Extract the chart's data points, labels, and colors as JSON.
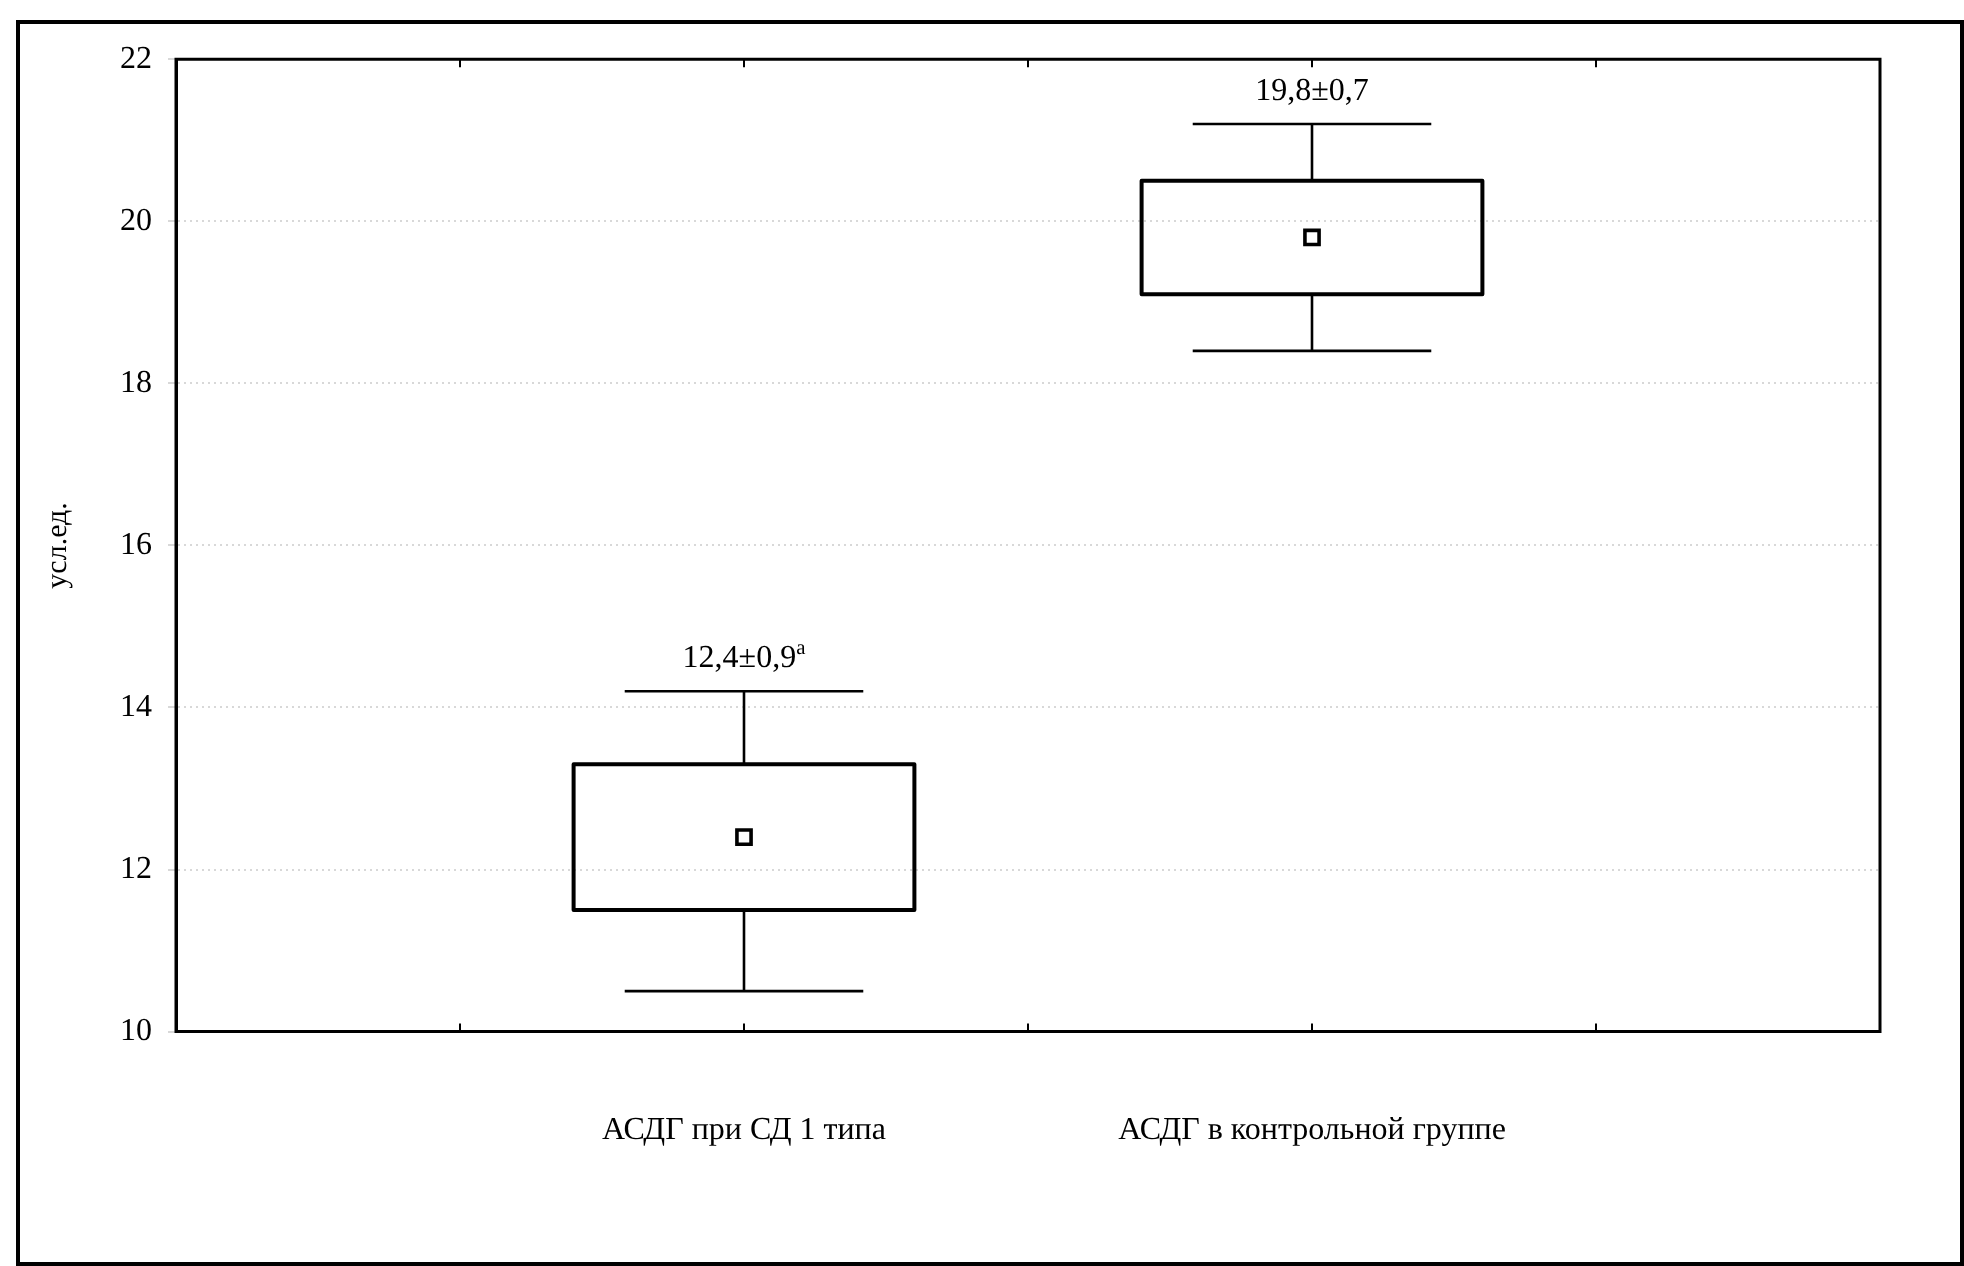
{
  "chart_data": {
    "type": "box",
    "ylabel": "усл.ед.",
    "categories": [
      "АСДГ при СД 1 типа",
      "АСДГ в контрольной группе"
    ],
    "boxes": [
      {
        "low": 10.5,
        "q1": 11.5,
        "q3": 13.3,
        "high": 14.2,
        "mean": 12.4
      },
      {
        "low": 18.4,
        "q1": 19.1,
        "q3": 20.5,
        "high": 21.2,
        "mean": 19.8
      }
    ],
    "color": "#000000",
    "ylim": [
      10,
      22
    ],
    "yticks": [
      10,
      12,
      14,
      16,
      18,
      20,
      22
    ],
    "grid": "y",
    "annotations": [
      {
        "text": "12,4±0,9$^{a}$",
        "x": "АСДГ при СД 1 типа",
        "y": 14.2
      },
      {
        "text": "19,8±0,7",
        "x": "АСДГ в контрольной группе",
        "y": 21.2
      }
    ]
  }
}
